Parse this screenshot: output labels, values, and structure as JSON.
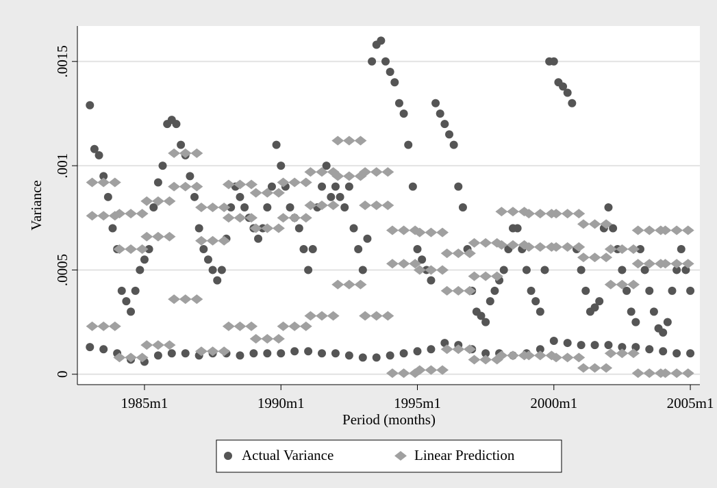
{
  "chart_data": {
    "type": "scatter",
    "x_label": "Period (months)",
    "y_label": "Variance",
    "xlim": [
      270.5,
      544.2
    ],
    "ylim": [
      -5e-05,
      0.00167
    ],
    "xticks": [
      {
        "value": 300,
        "label": "1985m1"
      },
      {
        "value": 360,
        "label": "1990m1"
      },
      {
        "value": 420,
        "label": "1995m1"
      },
      {
        "value": 480,
        "label": "2000m1"
      },
      {
        "value": 540,
        "label": "2005m1"
      }
    ],
    "yticks": [
      {
        "value": 0,
        "label": "0"
      },
      {
        "value": 0.0005,
        "label": ".0005"
      },
      {
        "value": 0.001,
        "label": ".001"
      },
      {
        "value": 0.0015,
        "label": ".0015"
      }
    ],
    "grid": true,
    "legend": "bottom",
    "series": [
      {
        "name": "Actual Variance",
        "color": "#555555",
        "marker": "circle",
        "x": [
          276,
          282,
          288,
          294,
          300,
          306,
          312,
          318,
          324,
          330,
          336,
          342,
          348,
          354,
          360,
          366,
          372,
          378,
          384,
          390,
          396,
          402,
          408,
          414,
          420,
          426,
          432,
          438,
          444,
          450,
          456,
          462,
          468,
          474,
          480,
          486,
          492,
          498,
          504,
          510,
          516,
          522,
          528,
          534,
          540,
          276,
          278,
          280,
          282,
          284,
          286,
          288,
          290,
          292,
          294,
          296,
          298,
          300,
          302,
          304,
          306,
          308,
          310,
          312,
          314,
          316,
          318,
          320,
          322,
          324,
          326,
          328,
          330,
          332,
          334,
          336,
          338,
          340,
          342,
          344,
          346,
          348,
          350,
          352,
          354,
          356,
          358,
          360,
          362,
          364,
          366,
          368,
          370,
          372,
          374,
          376,
          378,
          380,
          382,
          384,
          386,
          388,
          390,
          392,
          394,
          396,
          398,
          400,
          402,
          404,
          406,
          408,
          410,
          412,
          414,
          416,
          418,
          420,
          422,
          424,
          426,
          428,
          430,
          432,
          434,
          436,
          438,
          440,
          442,
          444,
          446,
          448,
          450,
          452,
          454,
          456,
          458,
          460,
          462,
          464,
          466,
          468,
          470,
          472,
          474,
          476,
          478,
          480,
          482,
          484,
          486,
          488,
          490,
          492,
          494,
          496,
          498,
          500,
          502,
          504,
          506,
          508,
          510,
          512,
          514,
          516,
          518,
          520,
          522,
          524,
          526,
          528,
          530,
          532,
          534,
          536,
          538,
          540
        ],
        "values": [
          0.00013,
          0.00012,
          0.0001,
          7e-05,
          6e-05,
          9e-05,
          0.0001,
          0.0001,
          9e-05,
          0.0001,
          0.0001,
          9e-05,
          0.0001,
          0.0001,
          0.0001,
          0.00011,
          0.00011,
          0.0001,
          0.0001,
          9e-05,
          8e-05,
          8e-05,
          9e-05,
          0.0001,
          0.00011,
          0.00012,
          0.00015,
          0.00014,
          0.00012,
          0.0001,
          0.0001,
          9e-05,
          0.0001,
          0.00012,
          0.00016,
          0.00015,
          0.00014,
          0.00014,
          0.00014,
          0.00013,
          0.00013,
          0.00012,
          0.00011,
          0.0001,
          0.0001,
          0.00129,
          0.00108,
          0.00105,
          0.00095,
          0.00085,
          0.0007,
          0.0006,
          0.0004,
          0.00035,
          0.0003,
          0.0004,
          0.0005,
          0.00055,
          0.0006,
          0.0008,
          0.00092,
          0.001,
          0.0012,
          0.00122,
          0.0012,
          0.0011,
          0.00105,
          0.00095,
          0.00085,
          0.0007,
          0.0006,
          0.00055,
          0.0005,
          0.00045,
          0.0005,
          0.00065,
          0.0008,
          0.0009,
          0.00085,
          0.0008,
          0.00075,
          0.0007,
          0.00065,
          0.0007,
          0.0008,
          0.0009,
          0.0011,
          0.001,
          0.0009,
          0.0008,
          0.00075,
          0.0007,
          0.0006,
          0.0005,
          0.0006,
          0.0008,
          0.0009,
          0.001,
          0.00085,
          0.0009,
          0.00085,
          0.0008,
          0.0009,
          0.0007,
          0.0006,
          0.0005,
          0.00065,
          0.0015,
          0.00158,
          0.0016,
          0.0015,
          0.00145,
          0.0014,
          0.0013,
          0.00125,
          0.0011,
          0.0009,
          0.0006,
          0.00055,
          0.0005,
          0.00045,
          0.0013,
          0.00125,
          0.0012,
          0.00115,
          0.0011,
          0.0009,
          0.0008,
          0.0006,
          0.0004,
          0.0003,
          0.00028,
          0.00025,
          0.00035,
          0.0004,
          0.00045,
          0.0005,
          0.0006,
          0.0007,
          0.0007,
          0.0006,
          0.0005,
          0.0004,
          0.00035,
          0.0003,
          0.0005,
          0.0015,
          0.0015,
          0.0014,
          0.00138,
          0.00135,
          0.0013,
          0.0006,
          0.0005,
          0.0004,
          0.0003,
          0.00032,
          0.00035,
          0.0007,
          0.0008,
          0.0007,
          0.0006,
          0.0005,
          0.0004,
          0.0003,
          0.00025,
          0.0006,
          0.0005,
          0.0004,
          0.0003,
          0.00022,
          0.0002,
          0.00025,
          0.0004,
          0.0005,
          0.0006,
          0.0005,
          0.0004
        ]
      },
      {
        "name": "Linear Prediction",
        "color": "#a0a0a0",
        "marker": "diamond",
        "x": [
          277,
          282,
          287,
          277,
          282,
          287,
          277,
          282,
          287,
          289,
          294,
          299,
          289,
          294,
          299,
          289,
          294,
          299,
          301,
          306,
          311,
          301,
          306,
          311,
          301,
          306,
          311,
          313,
          318,
          323,
          313,
          318,
          323,
          313,
          318,
          323,
          325,
          330,
          335,
          325,
          330,
          335,
          325,
          330,
          335,
          337,
          342,
          347,
          337,
          342,
          347,
          337,
          342,
          347,
          349,
          354,
          359,
          349,
          354,
          359,
          349,
          354,
          359,
          361,
          366,
          371,
          361,
          366,
          371,
          361,
          366,
          371,
          373,
          378,
          383,
          373,
          378,
          383,
          373,
          378,
          383,
          385,
          390,
          395,
          385,
          390,
          395,
          385,
          390,
          395,
          397,
          402,
          407,
          397,
          402,
          407,
          397,
          402,
          407,
          409,
          414,
          419,
          409,
          414,
          419,
          409,
          414,
          419,
          421,
          426,
          431,
          421,
          426,
          431,
          421,
          426,
          431,
          433,
          438,
          443,
          433,
          438,
          443,
          433,
          438,
          443,
          445,
          450,
          455,
          445,
          450,
          455,
          445,
          450,
          455,
          457,
          462,
          467,
          457,
          462,
          467,
          457,
          462,
          467,
          469,
          474,
          479,
          469,
          474,
          479,
          469,
          474,
          479,
          481,
          486,
          491,
          481,
          486,
          491,
          481,
          486,
          491,
          493,
          498,
          503,
          493,
          498,
          503,
          493,
          498,
          503,
          505,
          510,
          515,
          505,
          510,
          515,
          505,
          510,
          515,
          517,
          522,
          527,
          517,
          522,
          527,
          517,
          522,
          527,
          529,
          534,
          539,
          529,
          534,
          539,
          529,
          534,
          539
        ],
        "values": [
          0.00076,
          0.00076,
          0.00076,
          0.00092,
          0.00092,
          0.00092,
          0.00023,
          0.00023,
          0.00023,
          0.00077,
          0.00077,
          0.00077,
          0.0006,
          0.0006,
          0.0006,
          8e-05,
          8e-05,
          8e-05,
          0.00083,
          0.00083,
          0.00083,
          0.00066,
          0.00066,
          0.00066,
          0.00014,
          0.00014,
          0.00014,
          0.00106,
          0.00106,
          0.00106,
          0.0009,
          0.0009,
          0.0009,
          0.00036,
          0.00036,
          0.00036,
          0.00064,
          0.00064,
          0.00064,
          0.0008,
          0.0008,
          0.0008,
          0.00011,
          0.00011,
          0.00011,
          0.00075,
          0.00075,
          0.00075,
          0.00091,
          0.00091,
          0.00091,
          0.00023,
          0.00023,
          0.00023,
          0.0007,
          0.0007,
          0.0007,
          0.00087,
          0.00087,
          0.00087,
          0.00017,
          0.00017,
          0.00017,
          0.00075,
          0.00075,
          0.00075,
          0.00092,
          0.00092,
          0.00092,
          0.00023,
          0.00023,
          0.00023,
          0.00081,
          0.00081,
          0.00081,
          0.00097,
          0.00097,
          0.00097,
          0.00028,
          0.00028,
          0.00028,
          0.00095,
          0.00095,
          0.00095,
          0.00112,
          0.00112,
          0.00112,
          0.00043,
          0.00043,
          0.00043,
          0.00081,
          0.00081,
          0.00081,
          0.00097,
          0.00097,
          0.00097,
          0.00028,
          0.00028,
          0.00028,
          0.00053,
          0.00053,
          0.00053,
          0.00069,
          0.00069,
          0.00069,
          5e-06,
          5e-06,
          5e-06,
          0.0005,
          0.0005,
          0.0005,
          0.00068,
          0.00068,
          0.00068,
          2e-05,
          2e-05,
          2e-05,
          0.0004,
          0.0004,
          0.0004,
          0.00058,
          0.00058,
          0.00058,
          0.00012,
          0.00012,
          0.00012,
          0.00047,
          0.00047,
          0.00047,
          0.00063,
          0.00063,
          0.00063,
          7e-05,
          7e-05,
          7e-05,
          0.00062,
          0.00062,
          0.00062,
          0.00078,
          0.00078,
          0.00078,
          9e-05,
          9e-05,
          9e-05,
          0.00061,
          0.00061,
          0.00061,
          0.00077,
          0.00077,
          0.00077,
          9e-05,
          9e-05,
          9e-05,
          0.00061,
          0.00061,
          0.00061,
          0.00077,
          0.00077,
          0.00077,
          8e-05,
          8e-05,
          8e-05,
          0.00056,
          0.00056,
          0.00056,
          0.00072,
          0.00072,
          0.00072,
          3e-05,
          3e-05,
          3e-05,
          0.00043,
          0.00043,
          0.00043,
          0.0006,
          0.0006,
          0.0006,
          0.0001,
          0.0001,
          0.0001,
          0.00053,
          0.00053,
          0.00053,
          0.00069,
          0.00069,
          0.00069,
          5e-06,
          5e-06,
          5e-06,
          0.00053,
          0.00053,
          0.00053,
          0.00069,
          0.00069,
          0.00069,
          5e-06,
          5e-06,
          5e-06
        ]
      }
    ]
  }
}
